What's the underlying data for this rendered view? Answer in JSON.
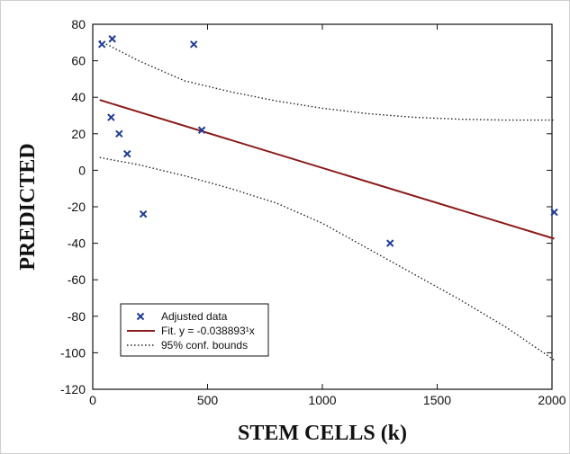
{
  "chart_data": {
    "type": "scatter",
    "title": "",
    "xlabel": "STEM CELLS (k)",
    "ylabel": "PREDICTED",
    "xlim": [
      0,
      2000
    ],
    "ylim": [
      -120,
      80
    ],
    "xticks": [
      0,
      500,
      1000,
      1500,
      2000
    ],
    "yticks": [
      -120,
      -100,
      -80,
      -60,
      -40,
      -20,
      0,
      20,
      40,
      60,
      80
    ],
    "grid": false,
    "legend_position": "bottom-left",
    "series": [
      {
        "name": "Adjusted data",
        "kind": "scatter",
        "marker": "x",
        "color": "#1f3c96",
        "points": [
          [
            40,
            69
          ],
          [
            85,
            72
          ],
          [
            80,
            29
          ],
          [
            115,
            20
          ],
          [
            150,
            9
          ],
          [
            220,
            -24
          ],
          [
            440,
            69
          ],
          [
            475,
            22
          ],
          [
            1295,
            -40
          ],
          [
            2010,
            -23
          ]
        ]
      },
      {
        "name": "Fit. y = -0.038893¹x",
        "kind": "line",
        "color": "#8b1a1a",
        "points": [
          [
            30,
            38.5
          ],
          [
            2010,
            -37.5
          ]
        ]
      },
      {
        "name": "95% conf. bounds",
        "kind": "dotted",
        "color": "#222222",
        "upper": [
          [
            30,
            71
          ],
          [
            200,
            60
          ],
          [
            400,
            49
          ],
          [
            600,
            43
          ],
          [
            800,
            38
          ],
          [
            1000,
            34
          ],
          [
            1200,
            31
          ],
          [
            1400,
            29
          ],
          [
            1600,
            28
          ],
          [
            1800,
            27.5
          ],
          [
            2010,
            27.5
          ]
        ],
        "lower": [
          [
            30,
            7
          ],
          [
            200,
            3
          ],
          [
            400,
            -3
          ],
          [
            600,
            -10
          ],
          [
            800,
            -18
          ],
          [
            1000,
            -29
          ],
          [
            1200,
            -43
          ],
          [
            1400,
            -57
          ],
          [
            1600,
            -71
          ],
          [
            1800,
            -86
          ],
          [
            2010,
            -104
          ]
        ]
      }
    ],
    "legend": [
      {
        "label": "Adjusted data",
        "style": "x-marker"
      },
      {
        "label": "Fit. y = -0.038893¹x",
        "style": "solid"
      },
      {
        "label": "95% conf. bounds",
        "style": "dotted"
      }
    ]
  }
}
